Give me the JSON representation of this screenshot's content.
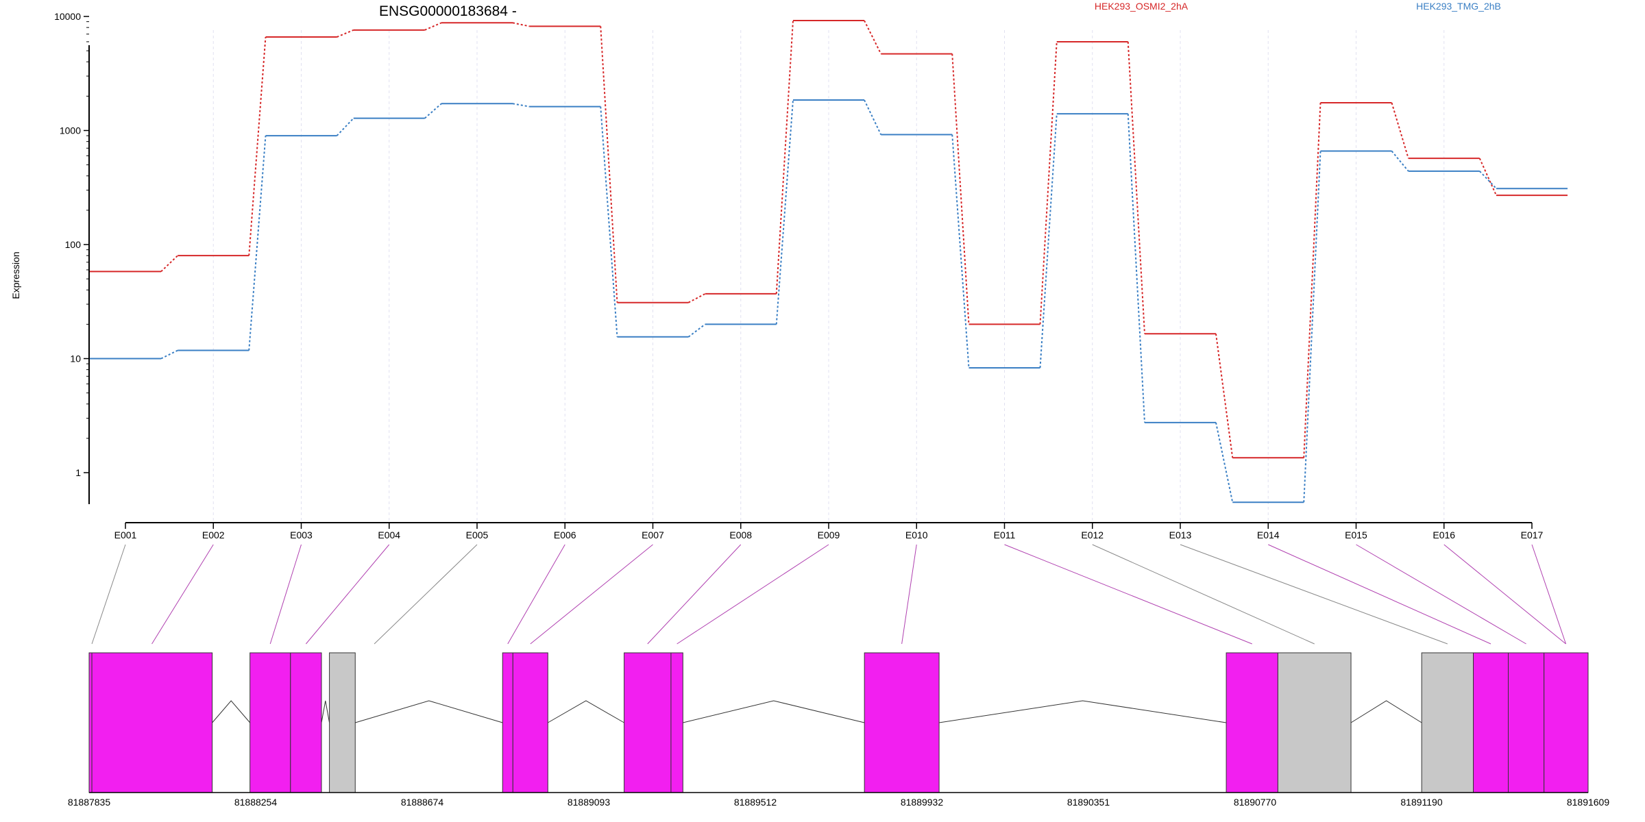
{
  "chart_data": {
    "type": "line",
    "title": "ENSG00000183684 -",
    "ylabel": "Expression",
    "xlabel": "",
    "y_scale": "log",
    "y_ticks": [
      1,
      10,
      100,
      1000,
      10000
    ],
    "y_tick_labels": [
      "1",
      "10",
      "100",
      "1000",
      "10000"
    ],
    "categories": [
      "E001",
      "E002",
      "E003",
      "E004",
      "E005",
      "E006",
      "E007",
      "E008",
      "E009",
      "E010",
      "E011",
      "E012",
      "E013",
      "E014",
      "E015",
      "E016",
      "E017"
    ],
    "series": [
      {
        "name": "HEK293_OSMI2_2hA",
        "color": "#d62728",
        "values": [
          58,
          80,
          6600,
          7600,
          8800,
          8200,
          31,
          37,
          9200,
          4700,
          20,
          6000,
          16.5,
          1.35,
          1750,
          570,
          270
        ]
      },
      {
        "name": "HEK293_TMG_2hB",
        "color": "#3a7fc4",
        "values": [
          10,
          11.8,
          900,
          1280,
          1720,
          1620,
          15.5,
          20,
          1850,
          920,
          8.3,
          1400,
          2.75,
          0.55,
          660,
          440,
          310
        ]
      }
    ],
    "grid": "vertical dashed",
    "legend": "top",
    "exon_model": {
      "coordinate_labels": [
        "81887835",
        "81888254",
        "81888674",
        "81889093",
        "81889512",
        "81889932",
        "81890351",
        "81890770",
        "81891190",
        "81891609"
      ],
      "coordinate_start": 81887835,
      "coordinate_end": 81891609,
      "exon_bins": [
        {
          "start": 81887835,
          "end": 81887842,
          "type": "expressed"
        },
        {
          "start": 81887842,
          "end": 81888145,
          "type": "expressed"
        },
        {
          "start": 81888240,
          "end": 81888342,
          "type": "expressed"
        },
        {
          "start": 81888342,
          "end": 81888420,
          "type": "expressed"
        },
        {
          "start": 81888440,
          "end": 81888505,
          "type": "non-expressed"
        },
        {
          "start": 81888876,
          "end": 81888902,
          "type": "expressed"
        },
        {
          "start": 81888902,
          "end": 81888990,
          "type": "expressed"
        },
        {
          "start": 81889182,
          "end": 81889300,
          "type": "expressed"
        },
        {
          "start": 81889300,
          "end": 81889330,
          "type": "expressed"
        },
        {
          "start": 81889787,
          "end": 81889975,
          "type": "expressed"
        },
        {
          "start": 81890698,
          "end": 81890828,
          "type": "expressed"
        },
        {
          "start": 81890828,
          "end": 81891012,
          "type": "non-expressed"
        },
        {
          "start": 81891190,
          "end": 81891320,
          "type": "non-expressed"
        },
        {
          "start": 81891320,
          "end": 81891408,
          "type": "expressed"
        },
        {
          "start": 81891408,
          "end": 81891498,
          "type": "expressed"
        },
        {
          "start": 81891498,
          "end": 81891609,
          "type": "expressed"
        }
      ],
      "introns": [
        [
          81888145,
          81888240
        ],
        [
          81888420,
          81888440
        ],
        [
          81888505,
          81888876
        ],
        [
          81888990,
          81889182
        ],
        [
          81889330,
          81889787
        ],
        [
          81889975,
          81890698
        ],
        [
          81891012,
          81891190
        ]
      ],
      "bin_links": [
        {
          "exon": "E001",
          "coord": 81887842,
          "color": "#888888"
        },
        {
          "exon": "E002",
          "coord": 81887993,
          "color": "#b040b0"
        },
        {
          "exon": "E003",
          "coord": 81888291,
          "color": "#b040b0"
        },
        {
          "exon": "E004",
          "coord": 81888381,
          "color": "#b040b0"
        },
        {
          "exon": "E005",
          "coord": 81888553,
          "color": "#888888"
        },
        {
          "exon": "E006",
          "coord": 81888889,
          "color": "#b040b0"
        },
        {
          "exon": "E007",
          "coord": 81888946,
          "color": "#b040b0"
        },
        {
          "exon": "E008",
          "coord": 81889241,
          "color": "#b040b0"
        },
        {
          "exon": "E009",
          "coord": 81889315,
          "color": "#b040b0"
        },
        {
          "exon": "E010",
          "coord": 81889881,
          "color": "#b040b0"
        },
        {
          "exon": "E011",
          "coord": 81890763,
          "color": "#b040b0"
        },
        {
          "exon": "E012",
          "coord": 81890920,
          "color": "#888888"
        },
        {
          "exon": "E013",
          "coord": 81891255,
          "color": "#888888"
        },
        {
          "exon": "E014",
          "coord": 81891364,
          "color": "#b040b0"
        },
        {
          "exon": "E015",
          "coord": 81891453,
          "color": "#b040b0"
        },
        {
          "exon": "E016",
          "coord": 81891553,
          "color": "#b040b0"
        },
        {
          "exon": "E017",
          "coord": 81891553,
          "color": "#b040b0"
        }
      ]
    },
    "colors": {
      "expressed_exon": "#f21ff0",
      "non_expressed_exon": "#c8c8c8",
      "grid": "#e0e0f0"
    }
  }
}
